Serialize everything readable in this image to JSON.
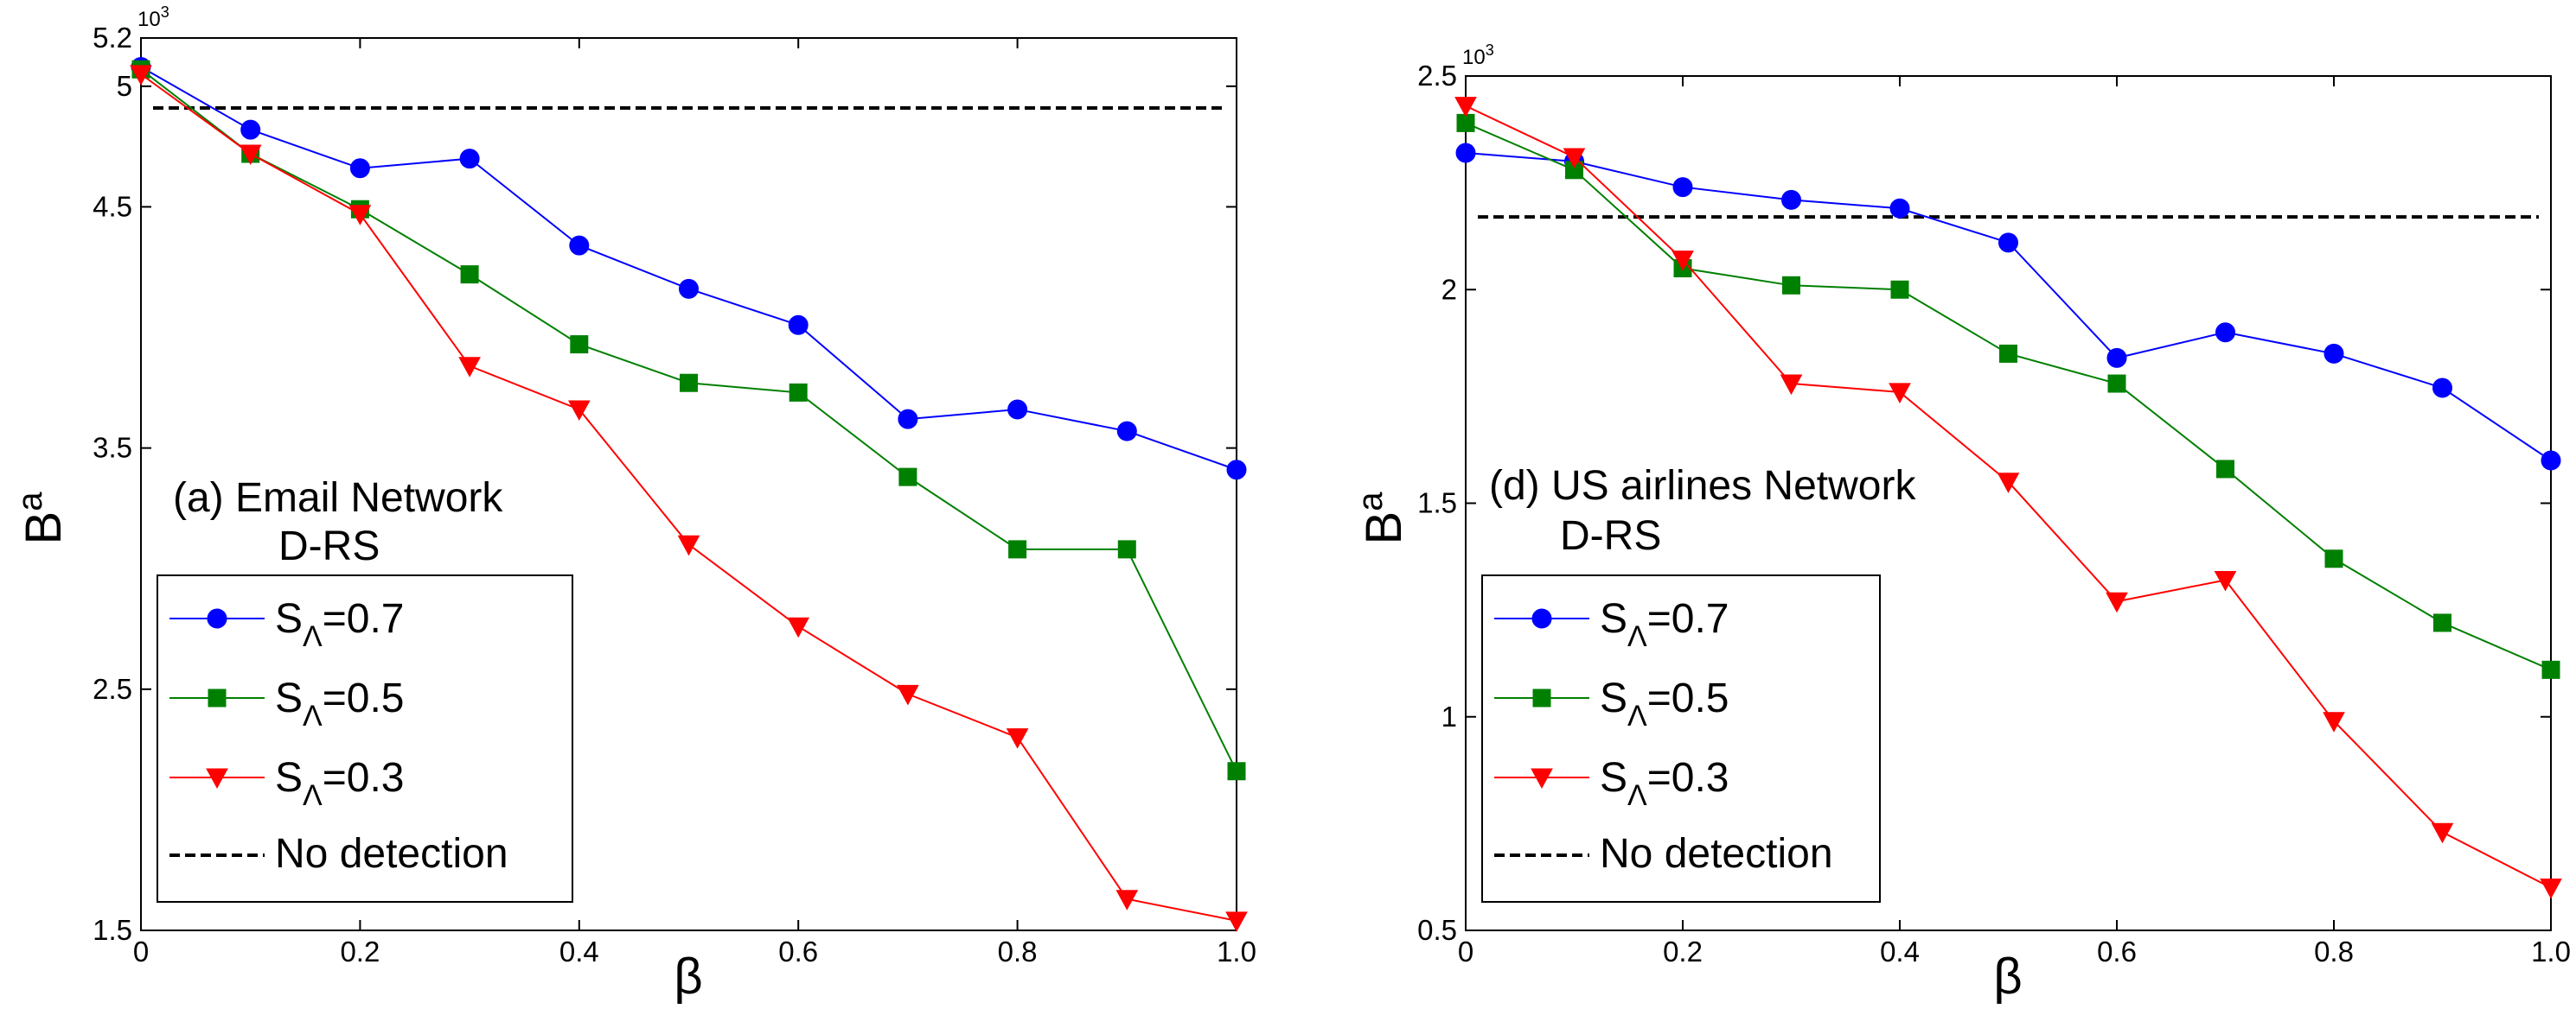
{
  "chart_data": [
    {
      "type": "line",
      "panel": "left",
      "title": "",
      "annotation_lines": [
        "(a) Email Network",
        "D-RS"
      ],
      "xlabel": "β",
      "ylabel": "B",
      "ylabel_sup": "a",
      "exponent_label": "10",
      "exponent_sup": "3",
      "xlim": [
        0,
        1.0
      ],
      "ylim": [
        1.5,
        5.2
      ],
      "xticks": [
        0,
        0.2,
        0.4,
        0.6,
        0.8,
        1.0
      ],
      "xtick_labels": [
        "0",
        "0.2",
        "0.4",
        "0.6",
        "0.8",
        "1.0"
      ],
      "yticks": [
        1.5,
        2.5,
        3.5,
        4.5,
        5,
        5.2
      ],
      "ytick_labels": [
        "1.5",
        "2.5",
        "3.5",
        "4.5",
        "5",
        "5.2"
      ],
      "x": [
        0,
        0.1,
        0.2,
        0.3,
        0.4,
        0.5,
        0.6,
        0.7,
        0.8,
        0.9,
        1.0
      ],
      "series": [
        {
          "name": "S_Λ=0.7",
          "label_main": "S",
          "label_sub": "Λ",
          "label_rest": "=0.7",
          "color": "#0000ff",
          "marker": "circle",
          "values": [
            5.08,
            4.82,
            4.66,
            4.7,
            4.34,
            4.16,
            4.01,
            3.62,
            3.66,
            3.57,
            3.41
          ]
        },
        {
          "name": "S_Λ=0.5",
          "label_main": "S",
          "label_sub": "Λ",
          "label_rest": "=0.5",
          "color": "#008000",
          "marker": "square",
          "values": [
            5.07,
            4.72,
            4.49,
            4.22,
            3.93,
            3.77,
            3.73,
            3.38,
            3.08,
            3.08,
            2.16
          ]
        },
        {
          "name": "S_Λ=0.3",
          "label_main": "S",
          "label_sub": "Λ",
          "label_rest": "=0.3",
          "color": "#ff0000",
          "marker": "triangle-down",
          "values": [
            5.05,
            4.72,
            4.47,
            3.84,
            3.66,
            3.1,
            2.76,
            2.48,
            2.3,
            1.63,
            1.54
          ]
        }
      ],
      "reference_line": {
        "name": "No detection",
        "value": 4.91,
        "color": "#000000",
        "style": "dashed"
      }
    },
    {
      "type": "line",
      "panel": "right",
      "title": "",
      "annotation_lines": [
        "(d) US airlines Network",
        "D-RS"
      ],
      "xlabel": "β",
      "ylabel": "B",
      "ylabel_sup": "a",
      "exponent_label": "10",
      "exponent_sup": "3",
      "xlim": [
        0,
        1.0
      ],
      "ylim": [
        0.5,
        2.5
      ],
      "xticks": [
        0,
        0.2,
        0.4,
        0.6,
        0.8,
        1.0
      ],
      "xtick_labels": [
        "0",
        "0.2",
        "0.4",
        "0.6",
        "0.8",
        "1.0"
      ],
      "yticks": [
        0.5,
        1,
        1.5,
        2,
        2.5
      ],
      "ytick_labels": [
        "0.5",
        "1",
        "1.5",
        "2",
        "2.5"
      ],
      "x": [
        0,
        0.1,
        0.2,
        0.3,
        0.4,
        0.5,
        0.6,
        0.7,
        0.8,
        0.9,
        1.0
      ],
      "series": [
        {
          "name": "S_Λ=0.7",
          "label_main": "S",
          "label_sub": "Λ",
          "label_rest": "=0.7",
          "color": "#0000ff",
          "marker": "circle",
          "values": [
            2.32,
            2.3,
            2.24,
            2.21,
            2.19,
            2.11,
            1.84,
            1.9,
            1.85,
            1.77,
            1.6
          ]
        },
        {
          "name": "S_Λ=0.5",
          "label_main": "S",
          "label_sub": "Λ",
          "label_rest": "=0.5",
          "color": "#008000",
          "marker": "square",
          "values": [
            2.39,
            2.28,
            2.05,
            2.01,
            2.0,
            1.85,
            1.78,
            1.58,
            1.37,
            1.22,
            1.11
          ]
        },
        {
          "name": "S_Λ=0.3",
          "label_main": "S",
          "label_sub": "Λ",
          "label_rest": "=0.3",
          "color": "#ff0000",
          "marker": "triangle-down",
          "values": [
            2.43,
            2.31,
            2.07,
            1.78,
            1.76,
            1.55,
            1.27,
            1.32,
            0.99,
            0.73,
            0.6
          ]
        }
      ],
      "reference_line": {
        "name": "No detection",
        "value": 2.17,
        "color": "#000000",
        "style": "dashed"
      }
    }
  ]
}
